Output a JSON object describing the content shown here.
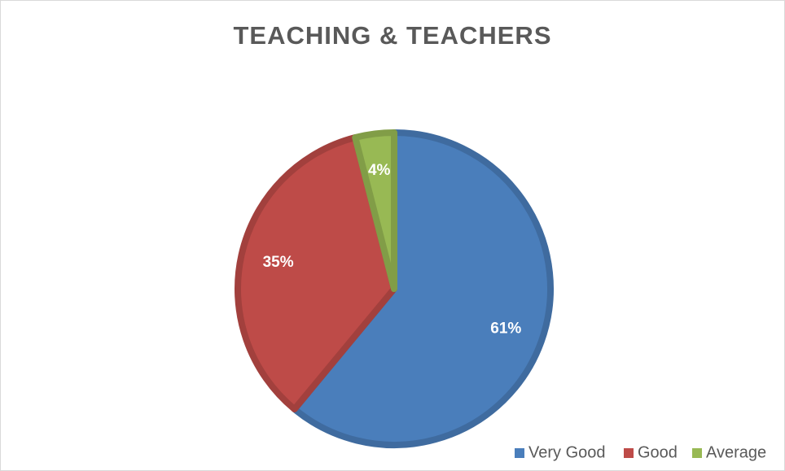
{
  "chart_data": {
    "type": "pie",
    "title": "TEACHING & TEACHERS",
    "categories": [
      "Very Good",
      "Good",
      "Average"
    ],
    "values": [
      61,
      35,
      4
    ],
    "value_labels": [
      "61%",
      "35%",
      "4%"
    ],
    "colors": [
      "#4a7ebb",
      "#be4b48",
      "#98b954"
    ],
    "legend": "bottom-right"
  }
}
